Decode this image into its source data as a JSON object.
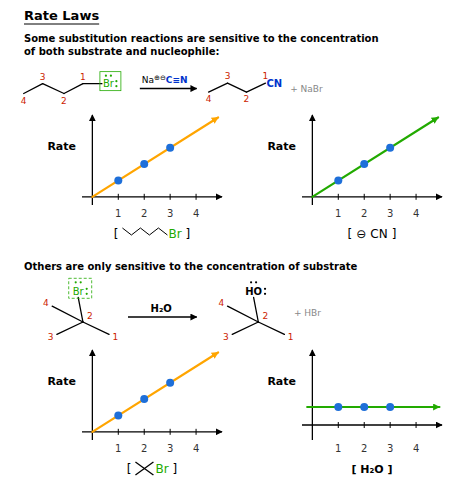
{
  "chart_data": [
    {
      "type": "scatter",
      "title": "Rate Laws",
      "subtitle": "Some substitution reactions are sensitive to the concentration\nof both substrate and nucleophile:",
      "annotations": [
        {
          "text": "4",
          "color": "#CC2200"
        },
        {
          "text": "3",
          "color": "#CC2200"
        },
        {
          "text": "2",
          "color": "#CC2200"
        },
        {
          "text": "1",
          "color": "#CC2200"
        },
        {
          "text": "Br",
          "color": "#22AA00"
        },
        {
          "text": "Na"
        },
        {
          "text": "⊕"
        },
        {
          "text": "⊖"
        },
        {
          "text": "C≡N",
          "color": "#0033CC"
        },
        {
          "text": "4",
          "color": "#CC2200"
        },
        {
          "text": "3",
          "color": "#CC2200"
        },
        {
          "text": "2",
          "color": "#CC2200"
        },
        {
          "text": "1",
          "color": "#CC2200"
        },
        {
          "text": "CN",
          "color": "#0033CC"
        },
        {
          "text": "+ NaBr",
          "color": "#888888"
        }
      ],
      "ylabel": "Rate",
      "xlabel": [
        {
          "text": "["
        },
        {
          "text": "Br",
          "color": "#22AA00"
        },
        {
          "text": "]"
        }
      ],
      "xlim": [
        -0.4,
        5.0
      ],
      "ylim": [
        -0.5,
        5.0
      ],
      "xticks": [
        1,
        2,
        3,
        4
      ],
      "tick_labels": "x",
      "series": [
        {
          "type": "line",
          "x": [
            0,
            4.85
          ],
          "values": [
            0,
            4.85
          ],
          "color": "#FFA500"
        },
        {
          "type": "scatter",
          "x": [
            1,
            2,
            3
          ],
          "values": [
            1,
            2,
            3
          ],
          "color": "#1E6FD9"
        }
      ]
    },
    {
      "type": "scatter",
      "ylabel": "Rate",
      "xlabel": [
        {
          "text": "["
        },
        {
          "text": "⊖"
        },
        {
          "text": "CN"
        },
        {
          "text": "]"
        }
      ],
      "xlim": [
        -0.4,
        5.0
      ],
      "ylim": [
        -0.5,
        5.0
      ],
      "xticks": [
        1,
        2,
        3,
        4
      ],
      "tick_labels": "x",
      "series": [
        {
          "type": "line",
          "x": [
            0,
            4.85
          ],
          "values": [
            0,
            4.85
          ],
          "color": "#22AA00"
        },
        {
          "type": "scatter",
          "x": [
            1,
            2,
            3
          ],
          "values": [
            1,
            2,
            3
          ],
          "color": "#1E6FD9"
        }
      ]
    },
    {
      "type": "scatter",
      "subtitle": "Others are only sensitive to the concentration of substrate",
      "annotations": [
        {
          "text": "4",
          "color": "#CC2200"
        },
        {
          "text": "3",
          "color": "#CC2200"
        },
        {
          "text": "2",
          "color": "#CC2200"
        },
        {
          "text": "1",
          "color": "#CC2200"
        },
        {
          "text": "Br",
          "color": "#22AA00"
        },
        {
          "text": "H₂O"
        },
        {
          "text": "4",
          "color": "#CC2200"
        },
        {
          "text": "3",
          "color": "#CC2200"
        },
        {
          "text": "2",
          "color": "#CC2200"
        },
        {
          "text": "1",
          "color": "#CC2200"
        },
        {
          "text": "HO"
        },
        {
          "text": "+ HBr",
          "color": "#888888"
        }
      ],
      "ylabel": "Rate",
      "xlabel": [
        {
          "text": "["
        },
        {
          "text": "Br",
          "color": "#22AA00"
        },
        {
          "text": "]"
        }
      ],
      "xlim": [
        -0.4,
        5.0
      ],
      "ylim": [
        -0.5,
        5.0
      ],
      "xticks": [
        1,
        2,
        3,
        4
      ],
      "tick_labels": "x",
      "series": [
        {
          "type": "line",
          "x": [
            0,
            4.85
          ],
          "values": [
            0,
            4.85
          ],
          "color": "#FFA500"
        },
        {
          "type": "scatter",
          "x": [
            1,
            2,
            3
          ],
          "values": [
            1,
            2,
            3
          ],
          "color": "#1E6FD9"
        }
      ]
    },
    {
      "type": "scatter",
      "ylabel": "Rate",
      "xlabel": "[ H₂O ]",
      "xlim": [
        -0.4,
        5.0
      ],
      "ylim": [
        -0.5,
        2.5
      ],
      "xticks": [
        1,
        2,
        3,
        4
      ],
      "tick_labels": "x",
      "series": [
        {
          "type": "line",
          "x": [
            -0.2,
            4.9
          ],
          "values": [
            0.6,
            0.6
          ],
          "color": "#22AA00"
        },
        {
          "type": "scatter",
          "x": [
            1,
            2,
            3
          ],
          "values": [
            0.6,
            0.6,
            0.6
          ],
          "color": "#1E6FD9"
        }
      ]
    }
  ]
}
